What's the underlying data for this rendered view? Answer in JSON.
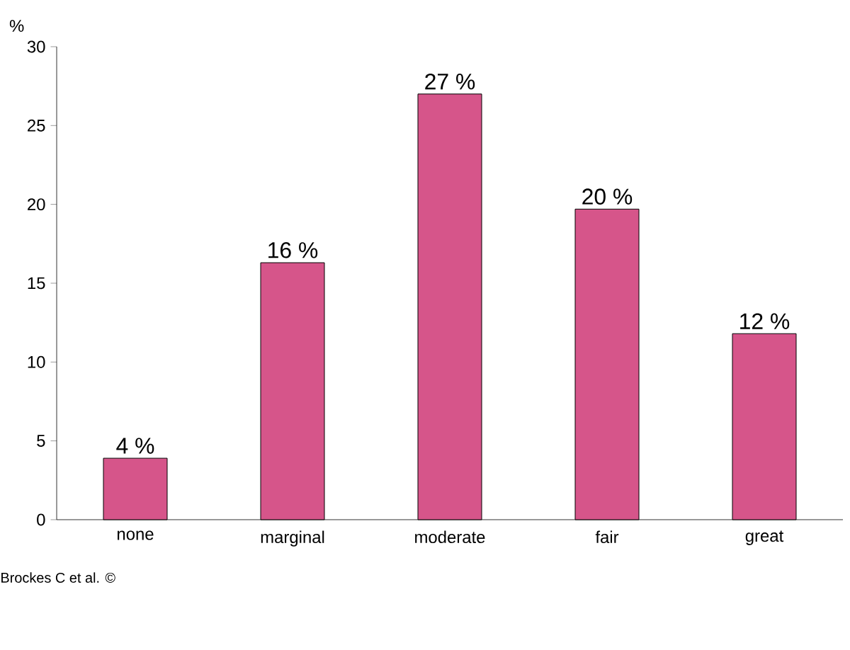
{
  "chart_data": {
    "type": "bar",
    "ylabel": "%",
    "categories": [
      "none",
      "marginal",
      "moderate",
      "fair",
      "great"
    ],
    "values": [
      3.9,
      16.3,
      27.0,
      19.7,
      11.8
    ],
    "value_labels": [
      "4 %",
      "16 %",
      "27 %",
      "20 %",
      "12 %"
    ],
    "color": "#d6558a",
    "ylim": [
      0,
      30
    ],
    "yticks": [
      0,
      5,
      10,
      15,
      20,
      25,
      30
    ],
    "annotations": [
      "Brockes C et al. ©"
    ]
  }
}
